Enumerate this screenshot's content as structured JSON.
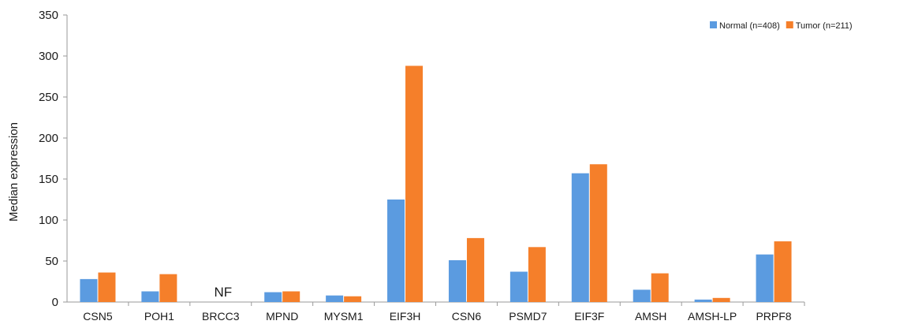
{
  "chart_data": {
    "type": "bar",
    "title": "",
    "xlabel": "",
    "ylabel": "Median expression",
    "ylim": [
      0,
      350
    ],
    "yticks": [
      0,
      50,
      100,
      150,
      200,
      250,
      300,
      350
    ],
    "grid": false,
    "legend_position": "top-right",
    "categories": [
      "CSN5",
      "POH1",
      "BRCC3",
      "MPND",
      "MYSM1",
      "EIF3H",
      "CSN6",
      "PSMD7",
      "EIF3F",
      "AMSH",
      "AMSH-LP",
      "PRPF8"
    ],
    "series": [
      {
        "name": "Normal (n=408)",
        "color": "#5b9be0",
        "values": [
          28,
          13,
          null,
          12,
          8,
          125,
          51,
          37,
          157,
          15,
          3,
          58
        ]
      },
      {
        "name": "Tumor (n=211)",
        "color": "#f57f2a",
        "values": [
          36,
          34,
          null,
          13,
          7,
          288,
          78,
          67,
          168,
          35,
          5,
          74
        ]
      }
    ],
    "annotations": [
      {
        "category": "BRCC3",
        "text": "NF"
      }
    ]
  }
}
